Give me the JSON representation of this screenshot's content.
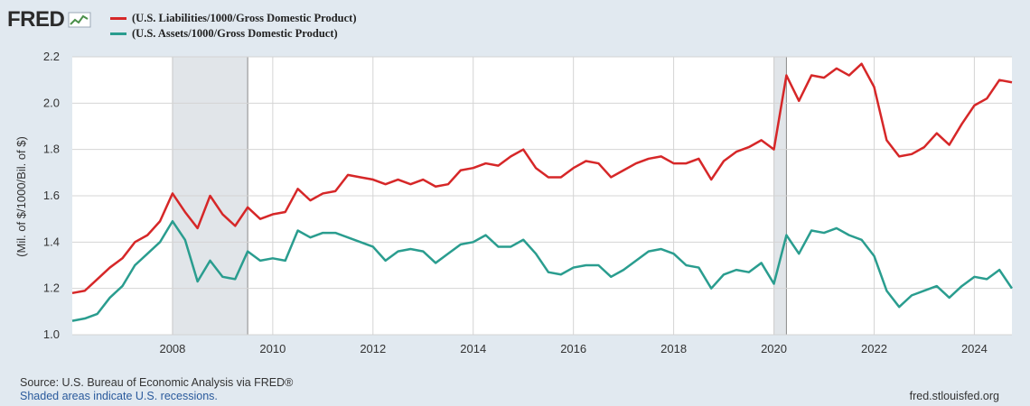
{
  "logo": {
    "text": "FRED",
    "icon": "line-chart-icon"
  },
  "footer": {
    "source": "Source: U.S. Bureau of Economic Analysis via FRED®",
    "recessions": "Shaded areas indicate U.S. recessions.",
    "site": "fred.stlouisfed.org"
  },
  "colors": {
    "background": "#e1e9f0",
    "plot_background": "#ffffff",
    "grid": "#d4d4d4",
    "recession": "#e1e5e9",
    "liabilities": "#d62728",
    "assets": "#2a9d8f"
  },
  "chart_data": {
    "type": "line",
    "ylabel": "(Mil. of $/1000/Bil. of $)",
    "xlabel": "",
    "xlim": [
      2006.0,
      2024.75
    ],
    "ylim": [
      1.0,
      2.2
    ],
    "x_ticks": [
      2008,
      2010,
      2012,
      2014,
      2016,
      2018,
      2020,
      2022,
      2024
    ],
    "y_ticks": [
      "1.0",
      "1.2",
      "1.4",
      "1.6",
      "1.8",
      "2.0",
      "2.2"
    ],
    "grid": true,
    "legend_position": "top-left",
    "recessions": [
      [
        2008.0,
        2009.5
      ],
      [
        2020.0,
        2020.25
      ]
    ],
    "x": [
      2006.0,
      2006.25,
      2006.5,
      2006.75,
      2007.0,
      2007.25,
      2007.5,
      2007.75,
      2008.0,
      2008.25,
      2008.5,
      2008.75,
      2009.0,
      2009.25,
      2009.5,
      2009.75,
      2010.0,
      2010.25,
      2010.5,
      2010.75,
      2011.0,
      2011.25,
      2011.5,
      2011.75,
      2012.0,
      2012.25,
      2012.5,
      2012.75,
      2013.0,
      2013.25,
      2013.5,
      2013.75,
      2014.0,
      2014.25,
      2014.5,
      2014.75,
      2015.0,
      2015.25,
      2015.5,
      2015.75,
      2016.0,
      2016.25,
      2016.5,
      2016.75,
      2017.0,
      2017.25,
      2017.5,
      2017.75,
      2018.0,
      2018.25,
      2018.5,
      2018.75,
      2019.0,
      2019.25,
      2019.5,
      2019.75,
      2020.0,
      2020.25,
      2020.5,
      2020.75,
      2021.0,
      2021.25,
      2021.5,
      2021.75,
      2022.0,
      2022.25,
      2022.5,
      2022.75,
      2023.0,
      2023.25,
      2023.5,
      2023.75,
      2024.0,
      2024.25,
      2024.5,
      2024.75
    ],
    "series": [
      {
        "name": "(U.S. Liabilities/1000/Gross Domestic Product)",
        "values": [
          1.18,
          1.19,
          1.24,
          1.29,
          1.33,
          1.4,
          1.43,
          1.49,
          1.61,
          1.53,
          1.46,
          1.6,
          1.52,
          1.47,
          1.55,
          1.5,
          1.52,
          1.53,
          1.63,
          1.58,
          1.61,
          1.62,
          1.69,
          1.68,
          1.67,
          1.65,
          1.67,
          1.65,
          1.67,
          1.64,
          1.65,
          1.71,
          1.72,
          1.74,
          1.73,
          1.77,
          1.8,
          1.72,
          1.68,
          1.68,
          1.72,
          1.75,
          1.74,
          1.68,
          1.71,
          1.74,
          1.76,
          1.77,
          1.74,
          1.74,
          1.76,
          1.67,
          1.75,
          1.79,
          1.81,
          1.84,
          1.8,
          2.12,
          2.01,
          2.12,
          2.11,
          2.15,
          2.12,
          2.17,
          2.07,
          1.84,
          1.77,
          1.78,
          1.81,
          1.87,
          1.82,
          1.91,
          1.99,
          2.02,
          2.1,
          2.09
        ]
      },
      {
        "name": "(U.S. Assets/1000/Gross Domestic Product)",
        "values": [
          1.06,
          1.07,
          1.09,
          1.16,
          1.21,
          1.3,
          1.35,
          1.4,
          1.49,
          1.41,
          1.23,
          1.32,
          1.25,
          1.24,
          1.36,
          1.32,
          1.33,
          1.32,
          1.45,
          1.42,
          1.44,
          1.44,
          1.42,
          1.4,
          1.38,
          1.32,
          1.36,
          1.37,
          1.36,
          1.31,
          1.35,
          1.39,
          1.4,
          1.43,
          1.38,
          1.38,
          1.41,
          1.35,
          1.27,
          1.26,
          1.29,
          1.3,
          1.3,
          1.25,
          1.28,
          1.32,
          1.36,
          1.37,
          1.35,
          1.3,
          1.29,
          1.2,
          1.26,
          1.28,
          1.27,
          1.31,
          1.22,
          1.43,
          1.35,
          1.45,
          1.44,
          1.46,
          1.43,
          1.41,
          1.34,
          1.19,
          1.12,
          1.17,
          1.19,
          1.21,
          1.16,
          1.21,
          1.25,
          1.24,
          1.28,
          1.2
        ]
      }
    ]
  }
}
